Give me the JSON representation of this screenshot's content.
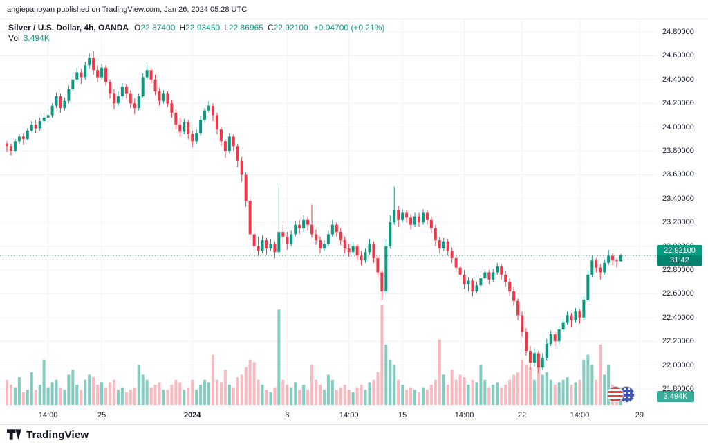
{
  "attribution": "angiepanoyan published on TradingView.com, Jan 26, 2024 05:28 UTC",
  "legend": {
    "title": "Silver / U.S. Dollar, 4h, OANDA",
    "ohlc": [
      {
        "label": "O",
        "value": "22.87400"
      },
      {
        "label": "H",
        "value": "22.93450"
      },
      {
        "label": "L",
        "value": "22.86965"
      },
      {
        "label": "C",
        "value": "22.92100"
      }
    ],
    "change": "+0.04700 (+0.21%)",
    "volume_label": "Vol",
    "volume_value": "3.494K"
  },
  "price_axis": {
    "labels": [
      "24.80000",
      "24.60000",
      "24.40000",
      "24.20000",
      "24.00000",
      "23.80000",
      "23.60000",
      "23.40000",
      "23.20000",
      "23.00000",
      "22.80000",
      "22.60000",
      "22.40000",
      "22.20000",
      "22.00000",
      "21.80000"
    ],
    "last_price_badge": {
      "price": "22.92100",
      "countdown": "31:42"
    },
    "volume_badge": "3.494K"
  },
  "time_axis": {
    "ticks": [
      {
        "label": "14:00",
        "index": 10
      },
      {
        "label": "25",
        "index": 23
      },
      {
        "label": "2024",
        "index": 45,
        "major": true
      },
      {
        "label": "8",
        "index": 68
      },
      {
        "label": "14:00",
        "index": 83
      },
      {
        "label": "15",
        "index": 96
      },
      {
        "label": "14:00",
        "index": 111
      },
      {
        "label": "22",
        "index": 125
      },
      {
        "label": "14:00",
        "index": 139
      },
      {
        "label": "29",
        "index": 153.5
      }
    ]
  },
  "footer": {
    "brand": "TradingView"
  },
  "colors": {
    "up": "#089981",
    "down": "#f23645",
    "volume_up": "rgba(8,153,129,0.5)",
    "volume_down": "rgba(242,54,69,0.35)",
    "grid": "#f0f3fa",
    "axis_text": "#131722",
    "badge_green": "#089981",
    "last_price_line": "#089981"
  },
  "chart_data": {
    "type": "candlestick",
    "title": "Silver / U.S. Dollar, 4h, OANDA",
    "symbol": "Silver / U.S. Dollar",
    "interval": "4h",
    "exchange": "OANDA",
    "last_price": 22.921,
    "y_range": {
      "min": 21.649,
      "max": 24.905
    },
    "y_tick_interval": 0.2,
    "volume_max_k": 20,
    "volume_unit": "K",
    "candles": [
      [
        23.86,
        23.88,
        23.79,
        23.84,
        5.0
      ],
      [
        23.84,
        23.86,
        23.76,
        23.8,
        4.0
      ],
      [
        23.8,
        23.9,
        23.79,
        23.88,
        3.5
      ],
      [
        23.88,
        23.94,
        23.86,
        23.92,
        5.5
      ],
      [
        23.92,
        23.95,
        23.85,
        23.9,
        2.5
      ],
      [
        23.9,
        23.99,
        23.89,
        23.97,
        3.0
      ],
      [
        23.97,
        24.05,
        23.96,
        24.02,
        6.5
      ],
      [
        24.02,
        24.06,
        23.95,
        23.99,
        3.0
      ],
      [
        23.99,
        24.08,
        23.97,
        24.05,
        4.0
      ],
      [
        24.05,
        24.12,
        24.02,
        24.08,
        9.0
      ],
      [
        24.08,
        24.14,
        24.04,
        24.1,
        3.5
      ],
      [
        24.1,
        24.2,
        24.08,
        24.18,
        4.5
      ],
      [
        24.18,
        24.29,
        24.16,
        24.26,
        5.0
      ],
      [
        24.26,
        24.28,
        24.12,
        24.16,
        3.5
      ],
      [
        24.16,
        24.25,
        24.14,
        24.22,
        3.0
      ],
      [
        24.22,
        24.35,
        24.2,
        24.32,
        6.0
      ],
      [
        24.32,
        24.43,
        24.3,
        24.4,
        7.0
      ],
      [
        24.4,
        24.5,
        24.37,
        24.46,
        4.0
      ],
      [
        24.46,
        24.49,
        24.36,
        24.42,
        3.0
      ],
      [
        24.42,
        24.55,
        24.4,
        24.52,
        5.0
      ],
      [
        24.52,
        24.62,
        24.49,
        24.58,
        6.0
      ],
      [
        24.58,
        24.64,
        24.44,
        24.48,
        5.5
      ],
      [
        24.48,
        24.52,
        24.38,
        24.42,
        4.0
      ],
      [
        24.42,
        24.53,
        24.4,
        24.5,
        4.5
      ],
      [
        24.5,
        24.52,
        24.35,
        24.38,
        3.5
      ],
      [
        24.38,
        24.4,
        24.24,
        24.28,
        4.5
      ],
      [
        24.28,
        24.32,
        24.15,
        24.2,
        5.0
      ],
      [
        24.2,
        24.3,
        24.18,
        24.26,
        3.0
      ],
      [
        24.26,
        24.37,
        24.24,
        24.34,
        3.5
      ],
      [
        24.34,
        24.36,
        24.24,
        24.28,
        2.5
      ],
      [
        24.28,
        24.31,
        24.16,
        24.2,
        3.0
      ],
      [
        24.2,
        24.24,
        24.11,
        24.16,
        3.5
      ],
      [
        24.16,
        24.28,
        24.14,
        24.26,
        8.0
      ],
      [
        24.26,
        24.45,
        24.25,
        24.42,
        6.0
      ],
      [
        24.42,
        24.52,
        24.4,
        24.48,
        5.0
      ],
      [
        24.48,
        24.5,
        24.36,
        24.4,
        3.5
      ],
      [
        24.4,
        24.44,
        24.27,
        24.3,
        4.0
      ],
      [
        24.3,
        24.33,
        24.18,
        24.22,
        4.5
      ],
      [
        24.22,
        24.31,
        24.2,
        24.28,
        3.0
      ],
      [
        24.28,
        24.3,
        24.17,
        24.2,
        3.0
      ],
      [
        24.2,
        24.23,
        24.08,
        24.12,
        4.0
      ],
      [
        24.12,
        24.15,
        23.98,
        24.02,
        5.0
      ],
      [
        24.02,
        24.08,
        23.92,
        23.96,
        4.5
      ],
      [
        23.96,
        24.07,
        23.94,
        24.04,
        3.0
      ],
      [
        24.04,
        24.06,
        23.9,
        23.94,
        3.5
      ],
      [
        23.94,
        23.97,
        23.83,
        23.88,
        5.0
      ],
      [
        23.88,
        23.98,
        23.86,
        23.95,
        3.0
      ],
      [
        23.95,
        24.09,
        23.93,
        24.06,
        4.0
      ],
      [
        24.06,
        24.16,
        24.04,
        24.14,
        5.0
      ],
      [
        24.14,
        24.22,
        24.12,
        24.18,
        4.5
      ],
      [
        24.18,
        24.2,
        24.05,
        24.1,
        10.0
      ],
      [
        24.1,
        24.12,
        23.94,
        23.98,
        5.0
      ],
      [
        23.98,
        24.0,
        23.84,
        23.88,
        4.5
      ],
      [
        23.88,
        23.9,
        23.74,
        23.8,
        7.0
      ],
      [
        23.8,
        23.95,
        23.78,
        23.92,
        4.0
      ],
      [
        23.92,
        23.94,
        23.8,
        23.84,
        3.5
      ],
      [
        23.84,
        23.86,
        23.66,
        23.72,
        5.5
      ],
      [
        23.72,
        23.75,
        23.54,
        23.6,
        6.0
      ],
      [
        23.6,
        23.62,
        23.33,
        23.38,
        7.5
      ],
      [
        23.38,
        23.42,
        23.05,
        23.1,
        9.0
      ],
      [
        23.1,
        23.16,
        22.94,
        23.0,
        8.5
      ],
      [
        23.0,
        23.08,
        22.92,
        22.96,
        5.0
      ],
      [
        22.96,
        23.09,
        22.94,
        23.05,
        4.0
      ],
      [
        23.05,
        23.07,
        22.93,
        22.98,
        3.0
      ],
      [
        22.98,
        23.06,
        22.96,
        23.02,
        2.5
      ],
      [
        23.02,
        23.04,
        22.9,
        22.95,
        3.5
      ],
      [
        22.95,
        23.52,
        22.93,
        23.12,
        19.0
      ],
      [
        23.12,
        23.18,
        23.02,
        23.08,
        5.0
      ],
      [
        23.08,
        23.12,
        22.97,
        23.02,
        4.0
      ],
      [
        23.02,
        23.13,
        23.0,
        23.1,
        3.5
      ],
      [
        23.1,
        23.21,
        23.08,
        23.18,
        4.5
      ],
      [
        23.18,
        23.22,
        23.1,
        23.15,
        3.0
      ],
      [
        23.15,
        23.26,
        23.12,
        23.22,
        4.0
      ],
      [
        23.22,
        23.25,
        23.13,
        23.18,
        3.0
      ],
      [
        23.18,
        23.35,
        23.07,
        23.1,
        8.0
      ],
      [
        23.1,
        23.14,
        23.01,
        23.05,
        5.0
      ],
      [
        23.05,
        23.08,
        22.94,
        22.98,
        4.0
      ],
      [
        22.98,
        23.05,
        22.96,
        23.02,
        3.0
      ],
      [
        23.02,
        23.13,
        23.0,
        23.1,
        6.0
      ],
      [
        23.1,
        23.22,
        23.08,
        23.18,
        5.0
      ],
      [
        23.18,
        23.2,
        23.08,
        23.12,
        3.0
      ],
      [
        23.12,
        23.15,
        23.01,
        23.05,
        3.5
      ],
      [
        23.05,
        23.08,
        22.94,
        22.98,
        4.0
      ],
      [
        22.98,
        23.02,
        22.91,
        22.95,
        3.0
      ],
      [
        22.95,
        23.04,
        22.93,
        23.0,
        2.5
      ],
      [
        23.0,
        23.02,
        22.88,
        22.92,
        3.5
      ],
      [
        22.92,
        22.96,
        22.84,
        22.88,
        4.0
      ],
      [
        22.88,
        22.98,
        22.86,
        22.95,
        3.0
      ],
      [
        22.95,
        23.06,
        22.93,
        23.02,
        4.5
      ],
      [
        23.02,
        23.04,
        22.86,
        22.9,
        5.0
      ],
      [
        22.9,
        22.92,
        22.74,
        22.78,
        6.5
      ],
      [
        22.78,
        22.8,
        22.55,
        22.62,
        20.0
      ],
      [
        22.62,
        23.06,
        22.6,
        23.0,
        12.0
      ],
      [
        23.0,
        23.26,
        22.98,
        23.2,
        9.0
      ],
      [
        23.2,
        23.5,
        23.18,
        23.3,
        8.0
      ],
      [
        23.3,
        23.34,
        23.16,
        23.22,
        5.0
      ],
      [
        23.22,
        23.31,
        23.2,
        23.28,
        4.0
      ],
      [
        23.28,
        23.3,
        23.2,
        23.24,
        3.0
      ],
      [
        23.24,
        23.27,
        23.14,
        23.18,
        3.5
      ],
      [
        23.18,
        23.28,
        23.16,
        23.25,
        3.0
      ],
      [
        23.25,
        23.28,
        23.16,
        23.2,
        2.5
      ],
      [
        23.2,
        23.31,
        23.18,
        23.28,
        3.5
      ],
      [
        23.28,
        23.3,
        23.18,
        23.22,
        3.0
      ],
      [
        23.22,
        23.25,
        23.11,
        23.15,
        4.0
      ],
      [
        23.15,
        23.18,
        23.0,
        23.05,
        5.0
      ],
      [
        23.05,
        23.08,
        22.94,
        22.98,
        13.0
      ],
      [
        22.98,
        23.07,
        22.96,
        23.04,
        6.0
      ],
      [
        23.04,
        23.06,
        22.92,
        22.96,
        4.0
      ],
      [
        22.96,
        22.99,
        22.86,
        22.9,
        7.0
      ],
      [
        22.9,
        22.93,
        22.78,
        22.82,
        5.0
      ],
      [
        22.82,
        22.86,
        22.72,
        22.76,
        6.0
      ],
      [
        22.76,
        22.8,
        22.64,
        22.68,
        5.5
      ],
      [
        22.68,
        22.74,
        22.62,
        22.71,
        4.0
      ],
      [
        22.71,
        22.73,
        22.58,
        22.62,
        5.0
      ],
      [
        22.62,
        22.7,
        22.6,
        22.67,
        4.5
      ],
      [
        22.67,
        22.76,
        22.65,
        22.73,
        8.0
      ],
      [
        22.73,
        22.81,
        22.71,
        22.78,
        5.0
      ],
      [
        22.78,
        22.8,
        22.68,
        22.72,
        3.5
      ],
      [
        22.72,
        22.81,
        22.7,
        22.78,
        4.0
      ],
      [
        22.78,
        22.86,
        22.76,
        22.83,
        4.5
      ],
      [
        22.83,
        22.85,
        22.72,
        22.76,
        3.5
      ],
      [
        22.76,
        22.79,
        22.66,
        22.7,
        4.0
      ],
      [
        22.7,
        22.73,
        22.58,
        22.62,
        5.0
      ],
      [
        22.62,
        22.66,
        22.5,
        22.54,
        6.0
      ],
      [
        22.54,
        22.56,
        22.38,
        22.42,
        6.5
      ],
      [
        22.42,
        22.45,
        22.24,
        22.28,
        9.0
      ],
      [
        22.28,
        22.31,
        22.08,
        22.12,
        8.0
      ],
      [
        22.12,
        22.16,
        21.96,
        22.02,
        7.5
      ],
      [
        22.02,
        22.14,
        21.99,
        22.1,
        5.0
      ],
      [
        22.1,
        22.12,
        21.93,
        21.98,
        8.0
      ],
      [
        21.98,
        22.1,
        21.96,
        22.06,
        6.0
      ],
      [
        22.06,
        22.22,
        22.04,
        22.18,
        6.5
      ],
      [
        22.18,
        22.29,
        22.16,
        22.26,
        5.0
      ],
      [
        22.26,
        22.28,
        22.16,
        22.2,
        4.0
      ],
      [
        22.2,
        22.33,
        22.18,
        22.3,
        4.5
      ],
      [
        22.3,
        22.39,
        22.28,
        22.36,
        5.0
      ],
      [
        22.36,
        22.45,
        22.34,
        22.42,
        5.5
      ],
      [
        22.42,
        22.44,
        22.32,
        22.38,
        4.0
      ],
      [
        22.38,
        22.48,
        22.36,
        22.45,
        4.5
      ],
      [
        22.45,
        22.47,
        22.35,
        22.4,
        5.0
      ],
      [
        22.4,
        22.58,
        22.38,
        22.55,
        9.0
      ],
      [
        22.55,
        22.8,
        22.53,
        22.76,
        10.0
      ],
      [
        22.76,
        22.92,
        22.74,
        22.88,
        8.0
      ],
      [
        22.88,
        22.9,
        22.78,
        22.82,
        5.0
      ],
      [
        22.82,
        22.85,
        22.72,
        22.78,
        12.0
      ],
      [
        22.78,
        22.89,
        22.76,
        22.86,
        6.0
      ],
      [
        22.86,
        22.97,
        22.84,
        22.92,
        8.0
      ],
      [
        22.92,
        22.94,
        22.84,
        22.88,
        4.0
      ],
      [
        22.88,
        22.9,
        22.82,
        22.874,
        3.0
      ],
      [
        22.874,
        22.9345,
        22.86965,
        22.921,
        3.494
      ]
    ]
  }
}
